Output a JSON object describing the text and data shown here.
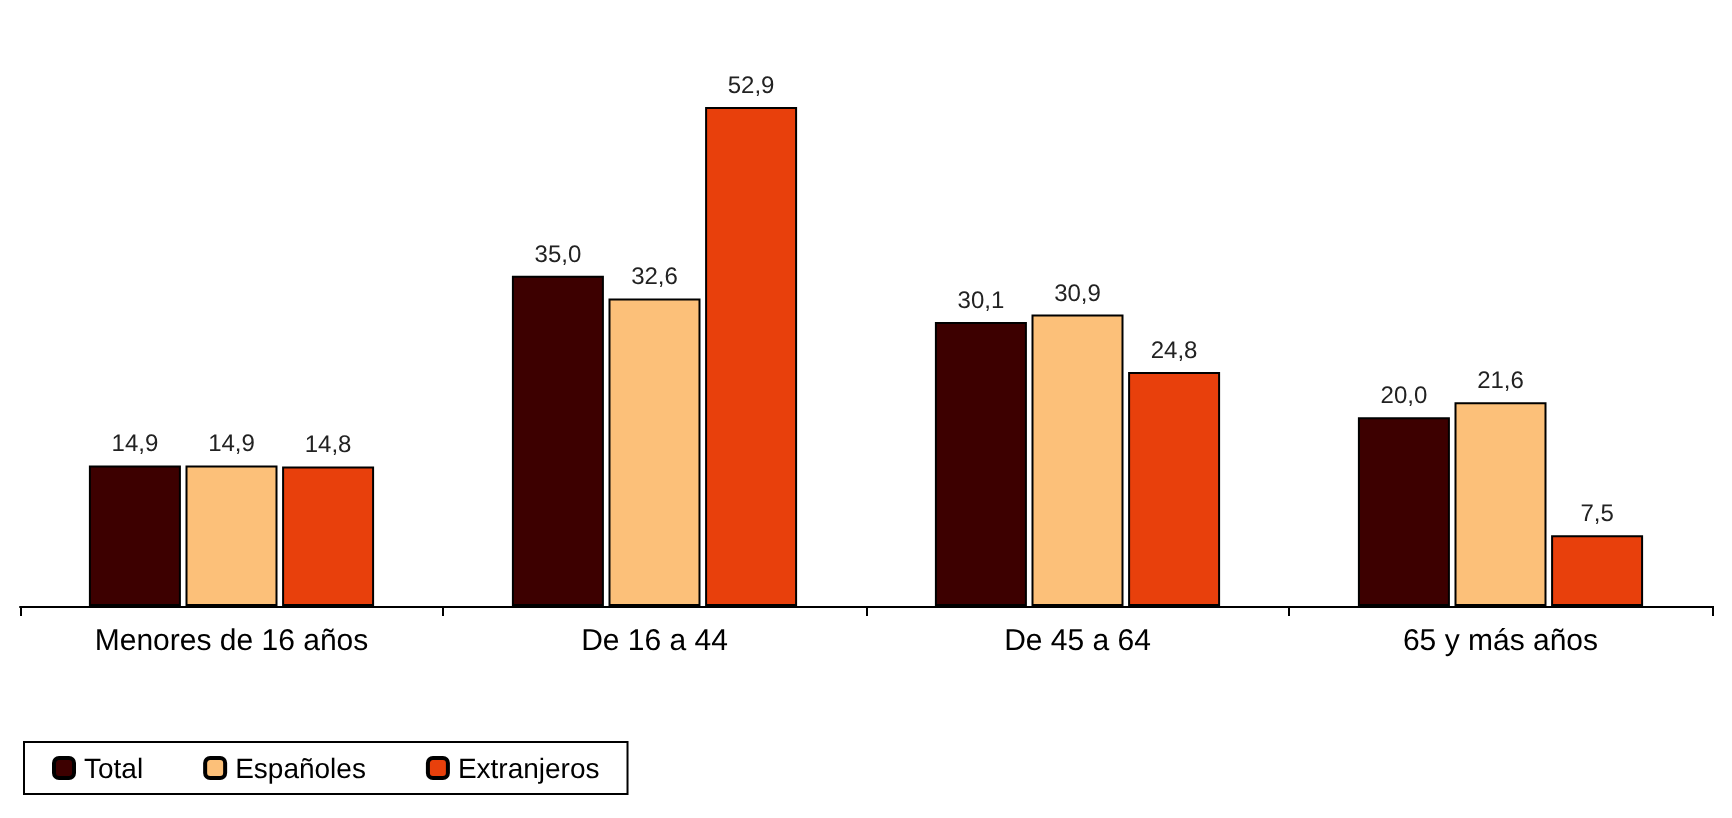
{
  "chart_data": {
    "type": "bar",
    "categories": [
      "Menores de 16 años",
      "De 16 a 44",
      "De 45 a 64",
      "65 y más años"
    ],
    "series": [
      {
        "name": "Total",
        "color": "#3d0000",
        "values": [
          14.9,
          35.0,
          30.1,
          20.0
        ],
        "value_labels": [
          "14,9",
          "35,0",
          "30,1",
          "20,0"
        ]
      },
      {
        "name": "Españoles",
        "color": "#fcc079",
        "values": [
          14.9,
          32.6,
          30.9,
          21.6
        ],
        "value_labels": [
          "14,9",
          "32,6",
          "30,9",
          "21,6"
        ]
      },
      {
        "name": "Extranjeros",
        "color": "#e8400c",
        "values": [
          14.8,
          52.9,
          24.8,
          7.5
        ],
        "value_labels": [
          "14,8",
          "52,9",
          "24,8",
          "7,5"
        ]
      }
    ],
    "legend": "bottom left",
    "grid": false
  }
}
